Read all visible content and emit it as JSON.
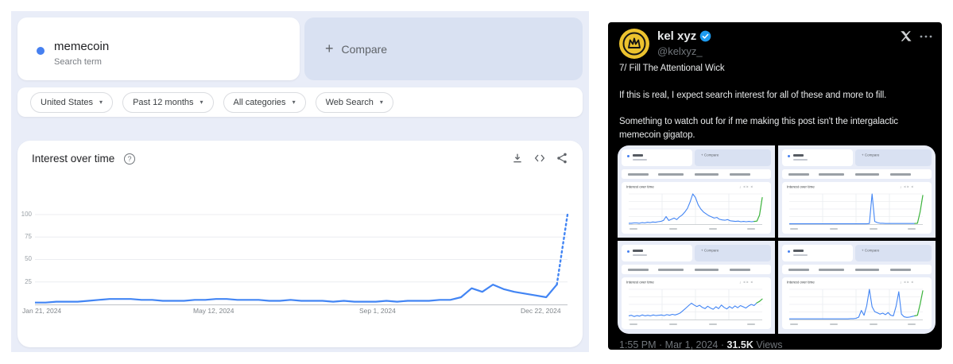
{
  "page": {
    "background": "#ffffff"
  },
  "trends": {
    "term_card": {
      "term": "memecoin",
      "subtitle": "Search term"
    },
    "compare_button": {
      "plus": "+",
      "label": "Compare"
    },
    "filters": [
      "United States",
      "Past 12 months",
      "All categories",
      "Web Search"
    ],
    "filter_caret": "▾",
    "chart_header": {
      "title": "Interest over time",
      "help_glyph": "?",
      "action_icons": [
        "download-icon",
        "embed-code-icon",
        "share-icon"
      ]
    },
    "y_axis_labels": [
      "100",
      "75",
      "50",
      "25"
    ],
    "x_axis_labels": [
      "Jan 21, 2024",
      "May 12, 2024",
      "Sep 1, 2024",
      "Dec 22, 2024"
    ],
    "colors": {
      "background": "#e9edf8",
      "card": "#ffffff",
      "compare_bg": "#d9e1f2",
      "line_blue": "#4285f4",
      "series_dot": "#4680f0",
      "text": "#202124",
      "muted": "#5f6368",
      "axis": "#9aa0a6"
    }
  },
  "chart_data": [
    {
      "id": "interest-over-time-main",
      "type": "line",
      "title": "Interest over time",
      "series": [
        {
          "name": "memecoin",
          "color": "#4285f4",
          "values": [
            2,
            2,
            3,
            3,
            3,
            4,
            5,
            6,
            6,
            6,
            5,
            5,
            4,
            4,
            4,
            5,
            5,
            6,
            6,
            5,
            5,
            5,
            4,
            4,
            5,
            4,
            4,
            4,
            3,
            4,
            3,
            3,
            3,
            4,
            3,
            4,
            4,
            4,
            5,
            5,
            8,
            18,
            14,
            22,
            17,
            14,
            12,
            10,
            8,
            22,
            100
          ]
        }
      ],
      "x_tick_labels": [
        "Jan 21, 2024",
        "May 12, 2024",
        "Sep 1, 2024",
        "Dec 22, 2024"
      ],
      "y_ticks": [
        25,
        50,
        75,
        100
      ],
      "ylim": [
        0,
        100
      ],
      "grid": true,
      "legend": "none",
      "partial_latest_point_dotted": true
    },
    {
      "id": "tweet-mini-chart-top-left",
      "type": "line",
      "title": "Interest over time",
      "term_legibility": "illegible",
      "ylim": [
        0,
        100
      ],
      "values": [
        3,
        3,
        4,
        4,
        3,
        5,
        4,
        6,
        5,
        7,
        6,
        8,
        9,
        12,
        25,
        12,
        16,
        20,
        15,
        24,
        30,
        40,
        52,
        74,
        100,
        88,
        64,
        50,
        40,
        34,
        28,
        24,
        20,
        22,
        16,
        14,
        13,
        15,
        11,
        10,
        9,
        10,
        8,
        9,
        8,
        9,
        8,
        9
      ],
      "green_annotation_tail": [
        10,
        30,
        88
      ]
    },
    {
      "id": "tweet-mini-chart-top-right",
      "type": "line",
      "title": "Interest over time",
      "term_legibility": "illegible",
      "ylim": [
        0,
        100
      ],
      "values": [
        1,
        1,
        1,
        1,
        1,
        1,
        1,
        1,
        1,
        1,
        1,
        1,
        1,
        1,
        1,
        1,
        1,
        1,
        1,
        1,
        1,
        1,
        1,
        1,
        1,
        1,
        1,
        1,
        1,
        1,
        2,
        100,
        9,
        5,
        3,
        3,
        2,
        2,
        2,
        2,
        2,
        2,
        2,
        2,
        2,
        2,
        2,
        2
      ],
      "green_annotation_tail": [
        3,
        40,
        95
      ]
    },
    {
      "id": "tweet-mini-chart-bottom-left",
      "type": "line",
      "title": "Interest over time",
      "term_legibility": "illegible",
      "ylim": [
        0,
        100
      ],
      "values": [
        12,
        14,
        10,
        13,
        11,
        15,
        12,
        14,
        12,
        15,
        13,
        14,
        15,
        13,
        16,
        14,
        17,
        15,
        18,
        22,
        30,
        38,
        46,
        54,
        48,
        43,
        47,
        40,
        36,
        44,
        38,
        34,
        42,
        36,
        48,
        40,
        35,
        43,
        37,
        45,
        39,
        46,
        42,
        38,
        45,
        50,
        46,
        55
      ],
      "green_annotation_tail": [
        60,
        68
      ]
    },
    {
      "id": "tweet-mini-chart-bottom-right",
      "type": "line",
      "title": "Interest over time",
      "term_legibility": "illegible",
      "ylim": [
        0,
        100
      ],
      "values": [
        2,
        2,
        2,
        2,
        2,
        2,
        2,
        2,
        2,
        2,
        2,
        2,
        2,
        2,
        2,
        2,
        2,
        2,
        2,
        2,
        2,
        2,
        2,
        3,
        3,
        4,
        8,
        30,
        14,
        45,
        100,
        42,
        26,
        22,
        18,
        21,
        16,
        23,
        14,
        12,
        44,
        92,
        18,
        9,
        7,
        8,
        10,
        12
      ],
      "green_annotation_tail": [
        14,
        50,
        95
      ]
    }
  ],
  "tweet": {
    "name": "kel xyz",
    "verified": true,
    "handle": "@kelxyz_",
    "header_icons": [
      "x-logo-icon",
      "more-icon"
    ],
    "lines": [
      "7/ Fill The Attentional Wick",
      "If this is real, I expect search interest for all of these and more to fill.",
      "Something to watch out for if me making this post isn't the intergalactic memecoin gigatop."
    ],
    "image_boilerplate": {
      "compare": "+ Compare",
      "chart_title": "Interest over time",
      "chart_icons": "↓ <> <"
    },
    "footer": {
      "timestamp": "1:55 PM · Mar 1, 2024",
      "separator": " · ",
      "views_count": "31.5K",
      "views_label": "Views"
    },
    "colors": {
      "bg": "#000000",
      "text": "#e7e9ea",
      "muted": "#71767b",
      "badge_blue": "#1d9bf0",
      "avatar_yellow": "#ecc22e",
      "annotation_green": "#3bb33b"
    }
  }
}
